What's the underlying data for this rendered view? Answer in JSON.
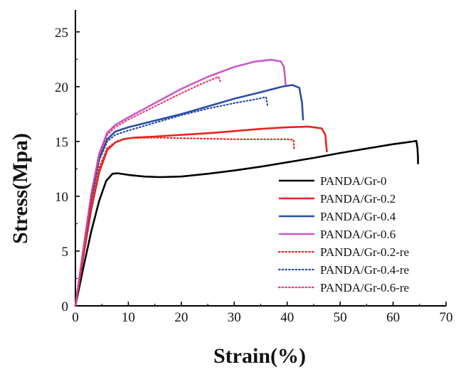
{
  "chart_data": {
    "type": "line",
    "xlabel": "Strain(%)",
    "ylabel": "Stress(Mpa)",
    "xlim": [
      0,
      70
    ],
    "ylim": [
      0,
      27
    ],
    "x_ticks": [
      0,
      10,
      20,
      30,
      40,
      50,
      60,
      70
    ],
    "y_ticks": [
      0,
      5,
      10,
      15,
      20,
      25
    ],
    "grid": false,
    "legend_position": "bottom-right",
    "series": [
      {
        "name": "PANDA/Gr-0",
        "color": "#000000",
        "style": "solid",
        "points": [
          [
            0,
            0
          ],
          [
            1.5,
            3.5
          ],
          [
            3,
            6.8
          ],
          [
            4.5,
            9.6
          ],
          [
            5.8,
            11.4
          ],
          [
            7,
            12.05
          ],
          [
            8,
            12.1
          ],
          [
            10,
            11.95
          ],
          [
            13,
            11.8
          ],
          [
            16,
            11.75
          ],
          [
            20,
            11.8
          ],
          [
            25,
            12.05
          ],
          [
            30,
            12.35
          ],
          [
            35,
            12.7
          ],
          [
            40,
            13.1
          ],
          [
            45,
            13.5
          ],
          [
            50,
            13.95
          ],
          [
            55,
            14.35
          ],
          [
            60,
            14.75
          ],
          [
            63,
            14.95
          ],
          [
            64.4,
            15.05
          ],
          [
            64.6,
            14.4
          ],
          [
            64.7,
            13.5
          ],
          [
            64.7,
            13.0
          ]
        ]
      },
      {
        "name": "PANDA/Gr-0.2",
        "color": "#e8231f",
        "style": "solid",
        "points": [
          [
            0,
            0
          ],
          [
            1.5,
            4.5
          ],
          [
            3,
            8.8
          ],
          [
            4.5,
            12.2
          ],
          [
            6,
            14.2
          ],
          [
            7.5,
            14.9
          ],
          [
            9,
            15.2
          ],
          [
            11,
            15.35
          ],
          [
            15,
            15.45
          ],
          [
            20,
            15.6
          ],
          [
            25,
            15.75
          ],
          [
            30,
            15.95
          ],
          [
            35,
            16.15
          ],
          [
            40,
            16.3
          ],
          [
            44,
            16.35
          ],
          [
            46.5,
            16.2
          ],
          [
            47.2,
            15.6
          ],
          [
            47.4,
            14.5
          ],
          [
            47.5,
            14.1
          ]
        ]
      },
      {
        "name": "PANDA/Gr-0.4",
        "color": "#2b4ea6",
        "style": "solid",
        "points": [
          [
            0,
            0
          ],
          [
            1.5,
            5
          ],
          [
            3,
            9.8
          ],
          [
            4.5,
            13.4
          ],
          [
            6,
            15.2
          ],
          [
            7.5,
            15.9
          ],
          [
            10,
            16.3
          ],
          [
            15,
            16.9
          ],
          [
            20,
            17.5
          ],
          [
            25,
            18.2
          ],
          [
            30,
            18.9
          ],
          [
            35,
            19.5
          ],
          [
            39,
            20.0
          ],
          [
            41,
            20.15
          ],
          [
            42.3,
            19.9
          ],
          [
            42.8,
            18.5
          ],
          [
            43,
            17.0
          ]
        ]
      },
      {
        "name": "PANDA/Gr-0.6",
        "color": "#c95ac9",
        "style": "solid",
        "points": [
          [
            0,
            0
          ],
          [
            1.5,
            5.2
          ],
          [
            3,
            10.2
          ],
          [
            4.5,
            13.9
          ],
          [
            6,
            15.8
          ],
          [
            7.5,
            16.5
          ],
          [
            10,
            17.2
          ],
          [
            15,
            18.5
          ],
          [
            20,
            19.8
          ],
          [
            25,
            20.9
          ],
          [
            30,
            21.8
          ],
          [
            34,
            22.3
          ],
          [
            37,
            22.45
          ],
          [
            38.8,
            22.3
          ],
          [
            39.4,
            21.8
          ],
          [
            39.6,
            20.8
          ],
          [
            39.7,
            20.2
          ]
        ]
      },
      {
        "name": "PANDA/Gr-0.2-re",
        "color": "#e8231f",
        "style": "dotted",
        "points": [
          [
            0,
            0
          ],
          [
            1.5,
            4.8
          ],
          [
            3,
            9.2
          ],
          [
            4.5,
            12.6
          ],
          [
            6,
            14.4
          ],
          [
            8,
            15.05
          ],
          [
            10,
            15.3
          ],
          [
            15,
            15.35
          ],
          [
            20,
            15.3
          ],
          [
            25,
            15.25
          ],
          [
            30,
            15.2
          ],
          [
            35,
            15.2
          ],
          [
            40,
            15.2
          ],
          [
            41.2,
            15.15
          ],
          [
            41.3,
            14.5
          ],
          [
            41.3,
            14.2
          ]
        ]
      },
      {
        "name": "PANDA/Gr-0.4-re",
        "color": "#2b4ea6",
        "style": "dotted",
        "points": [
          [
            0,
            0
          ],
          [
            1.5,
            5
          ],
          [
            3,
            9.8
          ],
          [
            4.5,
            13.3
          ],
          [
            6,
            15.0
          ],
          [
            7.5,
            15.6
          ],
          [
            10,
            16.0
          ],
          [
            15,
            16.7
          ],
          [
            20,
            17.4
          ],
          [
            25,
            18.0
          ],
          [
            30,
            18.5
          ],
          [
            34,
            18.85
          ],
          [
            36,
            19.05
          ],
          [
            36.2,
            18.6
          ],
          [
            36.3,
            18.2
          ]
        ]
      },
      {
        "name": "PANDA/Gr-0.6-re",
        "color": "#e83a6e",
        "style": "dotted",
        "points": [
          [
            0,
            0
          ],
          [
            1.5,
            5.2
          ],
          [
            3,
            10.2
          ],
          [
            4.5,
            13.8
          ],
          [
            6,
            15.6
          ],
          [
            7.5,
            16.3
          ],
          [
            10,
            17.0
          ],
          [
            15,
            18.2
          ],
          [
            20,
            19.4
          ],
          [
            24,
            20.3
          ],
          [
            27,
            20.9
          ],
          [
            27.3,
            20.6
          ],
          [
            27.4,
            20.4
          ]
        ]
      }
    ]
  }
}
